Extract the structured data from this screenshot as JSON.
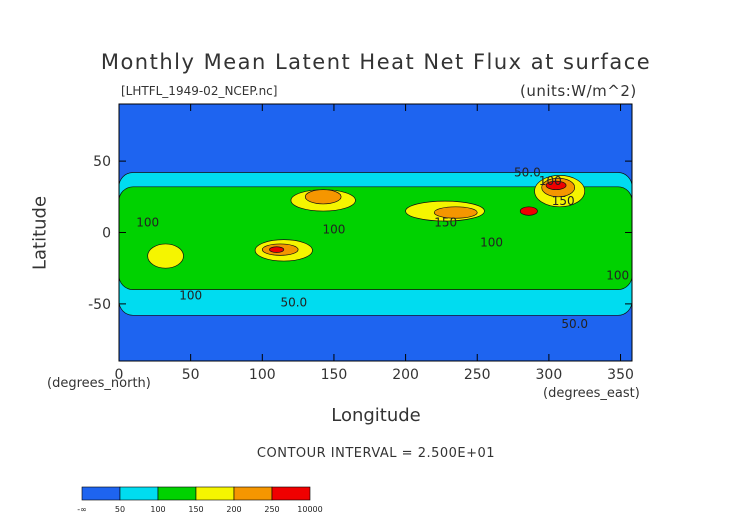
{
  "chart_data": {
    "type": "heatmap",
    "title": "Monthly Mean Latent Heat Net Flux at surface",
    "file_label": "[LHTFL_1949-02_NCEP.nc]",
    "units_label": "(units:W/m^2)",
    "xlabel": "Longitude",
    "ylabel": "Latitude",
    "x_unit_label": "(degrees_east)",
    "y_unit_label": "(degrees_north)",
    "xlim": [
      0,
      358
    ],
    "ylim": [
      -90,
      90
    ],
    "xticks": [
      0,
      50,
      100,
      150,
      200,
      250,
      300,
      350
    ],
    "yticks": [
      -50,
      0,
      50
    ],
    "contour_interval_text": "CONTOUR INTERVAL = 2.500E+01",
    "contour_labels": [
      {
        "text": "50.0",
        "lon": 285,
        "lat": 42
      },
      {
        "text": "100",
        "lon": 301,
        "lat": 36
      },
      {
        "text": "100",
        "lon": 150,
        "lat": 2
      },
      {
        "text": "150",
        "lon": 228,
        "lat": 7
      },
      {
        "text": "100",
        "lon": 260,
        "lat": -7
      },
      {
        "text": "150",
        "lon": 310,
        "lat": 22
      },
      {
        "text": "100",
        "lon": 50,
        "lat": -44
      },
      {
        "text": "50.0",
        "lon": 122,
        "lat": -49
      },
      {
        "text": "100",
        "lon": 348,
        "lat": -30
      },
      {
        "text": "50.0",
        "lon": 318,
        "lat": -64
      },
      {
        "text": "100",
        "lon": 20,
        "lat": 7
      }
    ],
    "colorbar": {
      "colors": [
        "#1e64f0",
        "#00dcf0",
        "#00d200",
        "#f5f500",
        "#f59600",
        "#f00000"
      ],
      "labels": [
        "-∞",
        "50",
        "100",
        "150",
        "200",
        "250",
        "10000"
      ]
    },
    "levels": [
      50,
      100,
      150,
      200,
      250
    ],
    "field_regions": [
      {
        "level": 1,
        "lon": [
          0,
          358
        ],
        "lat": [
          -58,
          42
        ]
      },
      {
        "level": 2,
        "lon": [
          0,
          358
        ],
        "lat": [
          -40,
          32
        ]
      },
      {
        "level": 3,
        "lon": [
          20,
          45
        ],
        "lat": [
          -25,
          -8
        ]
      },
      {
        "level": 3,
        "lon": [
          95,
          135
        ],
        "lat": [
          -20,
          -5
        ]
      },
      {
        "level": 3,
        "lon": [
          120,
          165
        ],
        "lat": [
          15,
          30
        ]
      },
      {
        "level": 3,
        "lon": [
          200,
          255
        ],
        "lat": [
          8,
          22
        ]
      },
      {
        "level": 3,
        "lon": [
          290,
          325
        ],
        "lat": [
          18,
          40
        ]
      },
      {
        "level": 4,
        "lon": [
          100,
          125
        ],
        "lat": [
          -16,
          -8
        ]
      },
      {
        "level": 4,
        "lon": [
          130,
          155
        ],
        "lat": [
          20,
          30
        ]
      },
      {
        "level": 4,
        "lon": [
          220,
          250
        ],
        "lat": [
          10,
          18
        ]
      },
      {
        "level": 4,
        "lon": [
          295,
          318
        ],
        "lat": [
          25,
          38
        ]
      },
      {
        "level": 5,
        "lon": [
          105,
          115
        ],
        "lat": [
          -14,
          -10
        ]
      },
      {
        "level": 5,
        "lon": [
          298,
          312
        ],
        "lat": [
          30,
          36
        ]
      },
      {
        "level": 5,
        "lon": [
          280,
          292
        ],
        "lat": [
          12,
          18
        ]
      }
    ]
  }
}
